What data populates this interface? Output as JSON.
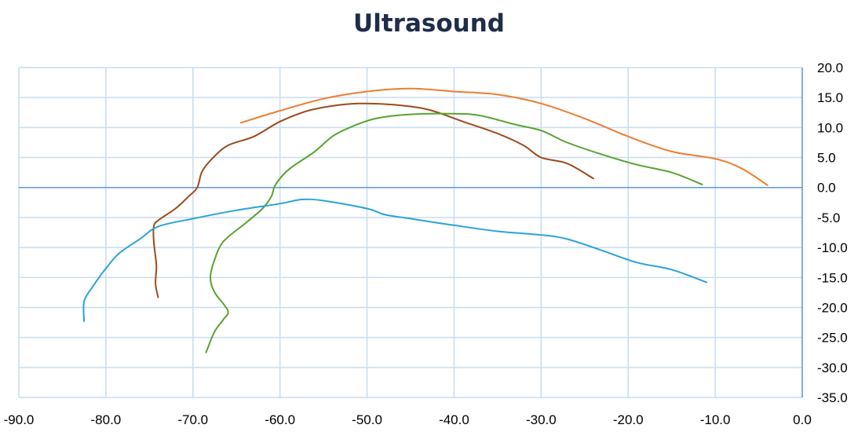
{
  "chart_data": {
    "type": "line",
    "title": "Ultrasound",
    "xlabel": "",
    "ylabel": "",
    "xlim": [
      -90,
      0
    ],
    "ylim": [
      -35,
      20
    ],
    "x_ticks": [
      "-90.0",
      "-80.0",
      "-70.0",
      "-60.0",
      "-50.0",
      "-40.0",
      "-30.0",
      "-20.0",
      "-10.0",
      "0.0"
    ],
    "y_ticks": [
      "20.0",
      "15.0",
      "10.0",
      "5.0",
      "0.0",
      "-5.0",
      "-10.0",
      "-15.0",
      "-20.0",
      "-25.0",
      "-30.0",
      "-35.0"
    ],
    "y_axis_position": "right",
    "grid": true,
    "legend": "none",
    "colors": {
      "grid": "#c9dcf0",
      "axis": "#5b9bd5",
      "series1": "#ed7d31",
      "series2": "#9c4a1a",
      "series3": "#57a332",
      "series4": "#2aa2d8"
    },
    "series": [
      {
        "color_key": "series1",
        "points": [
          [
            -64.5,
            10.8
          ],
          [
            -60,
            12.8
          ],
          [
            -55,
            14.8
          ],
          [
            -50,
            16
          ],
          [
            -45,
            16.5
          ],
          [
            -40,
            16
          ],
          [
            -35,
            15.5
          ],
          [
            -30,
            14
          ],
          [
            -25,
            11.5
          ],
          [
            -20,
            8.5
          ],
          [
            -15,
            6
          ],
          [
            -10,
            4.8
          ],
          [
            -7,
            3.2
          ],
          [
            -4,
            0.4
          ]
        ]
      },
      {
        "color_key": "series2",
        "points": [
          [
            -74,
            -18.3
          ],
          [
            -74.3,
            -16
          ],
          [
            -74.2,
            -13
          ],
          [
            -74.5,
            -9
          ],
          [
            -74.5,
            -6.5
          ],
          [
            -74,
            -5.5
          ],
          [
            -72,
            -3.5
          ],
          [
            -70.5,
            -1.5
          ],
          [
            -69.5,
            0
          ],
          [
            -69,
            2.5
          ],
          [
            -68,
            4.5
          ],
          [
            -66,
            7
          ],
          [
            -63,
            8.5
          ],
          [
            -60,
            11
          ],
          [
            -57,
            12.7
          ],
          [
            -54,
            13.6
          ],
          [
            -51,
            14
          ],
          [
            -47,
            13.8
          ],
          [
            -43,
            13
          ],
          [
            -39,
            11
          ],
          [
            -35,
            9
          ],
          [
            -32,
            7
          ],
          [
            -30,
            5
          ],
          [
            -27,
            4
          ],
          [
            -24,
            1.5
          ]
        ]
      },
      {
        "color_key": "series3",
        "points": [
          [
            -68.5,
            -27.5
          ],
          [
            -67.5,
            -24
          ],
          [
            -66.5,
            -22
          ],
          [
            -66,
            -20.5
          ],
          [
            -67.5,
            -17.5
          ],
          [
            -68,
            -15
          ],
          [
            -67.5,
            -12
          ],
          [
            -66.5,
            -9
          ],
          [
            -64,
            -6
          ],
          [
            -62,
            -3.5
          ],
          [
            -61,
            -1.5
          ],
          [
            -60.5,
            0.5
          ],
          [
            -59,
            3
          ],
          [
            -56,
            6
          ],
          [
            -54,
            8.5
          ],
          [
            -52,
            10
          ],
          [
            -49,
            11.5
          ],
          [
            -45,
            12.2
          ],
          [
            -40,
            12.3
          ],
          [
            -37,
            12
          ],
          [
            -33,
            10.5
          ],
          [
            -30,
            9.5
          ],
          [
            -27,
            7.5
          ],
          [
            -23,
            5.5
          ],
          [
            -19,
            3.8
          ],
          [
            -15,
            2.5
          ],
          [
            -11.5,
            0.5
          ]
        ]
      },
      {
        "color_key": "series4",
        "points": [
          [
            -82.5,
            -22.3
          ],
          [
            -82.5,
            -19
          ],
          [
            -81.5,
            -16.5
          ],
          [
            -80,
            -13.5
          ],
          [
            -78.5,
            -11
          ],
          [
            -76,
            -8.5
          ],
          [
            -74,
            -6.5
          ],
          [
            -70,
            -5.2
          ],
          [
            -65,
            -3.8
          ],
          [
            -60,
            -2.7
          ],
          [
            -57.5,
            -2
          ],
          [
            -55,
            -2.2
          ],
          [
            -50,
            -3.5
          ],
          [
            -48,
            -4.5
          ],
          [
            -45,
            -5.2
          ],
          [
            -40,
            -6.3
          ],
          [
            -35,
            -7.3
          ],
          [
            -30,
            -7.9
          ],
          [
            -27,
            -8.6
          ],
          [
            -23,
            -10.5
          ],
          [
            -19,
            -12.5
          ],
          [
            -15,
            -13.7
          ],
          [
            -11,
            -15.8
          ]
        ]
      }
    ]
  }
}
